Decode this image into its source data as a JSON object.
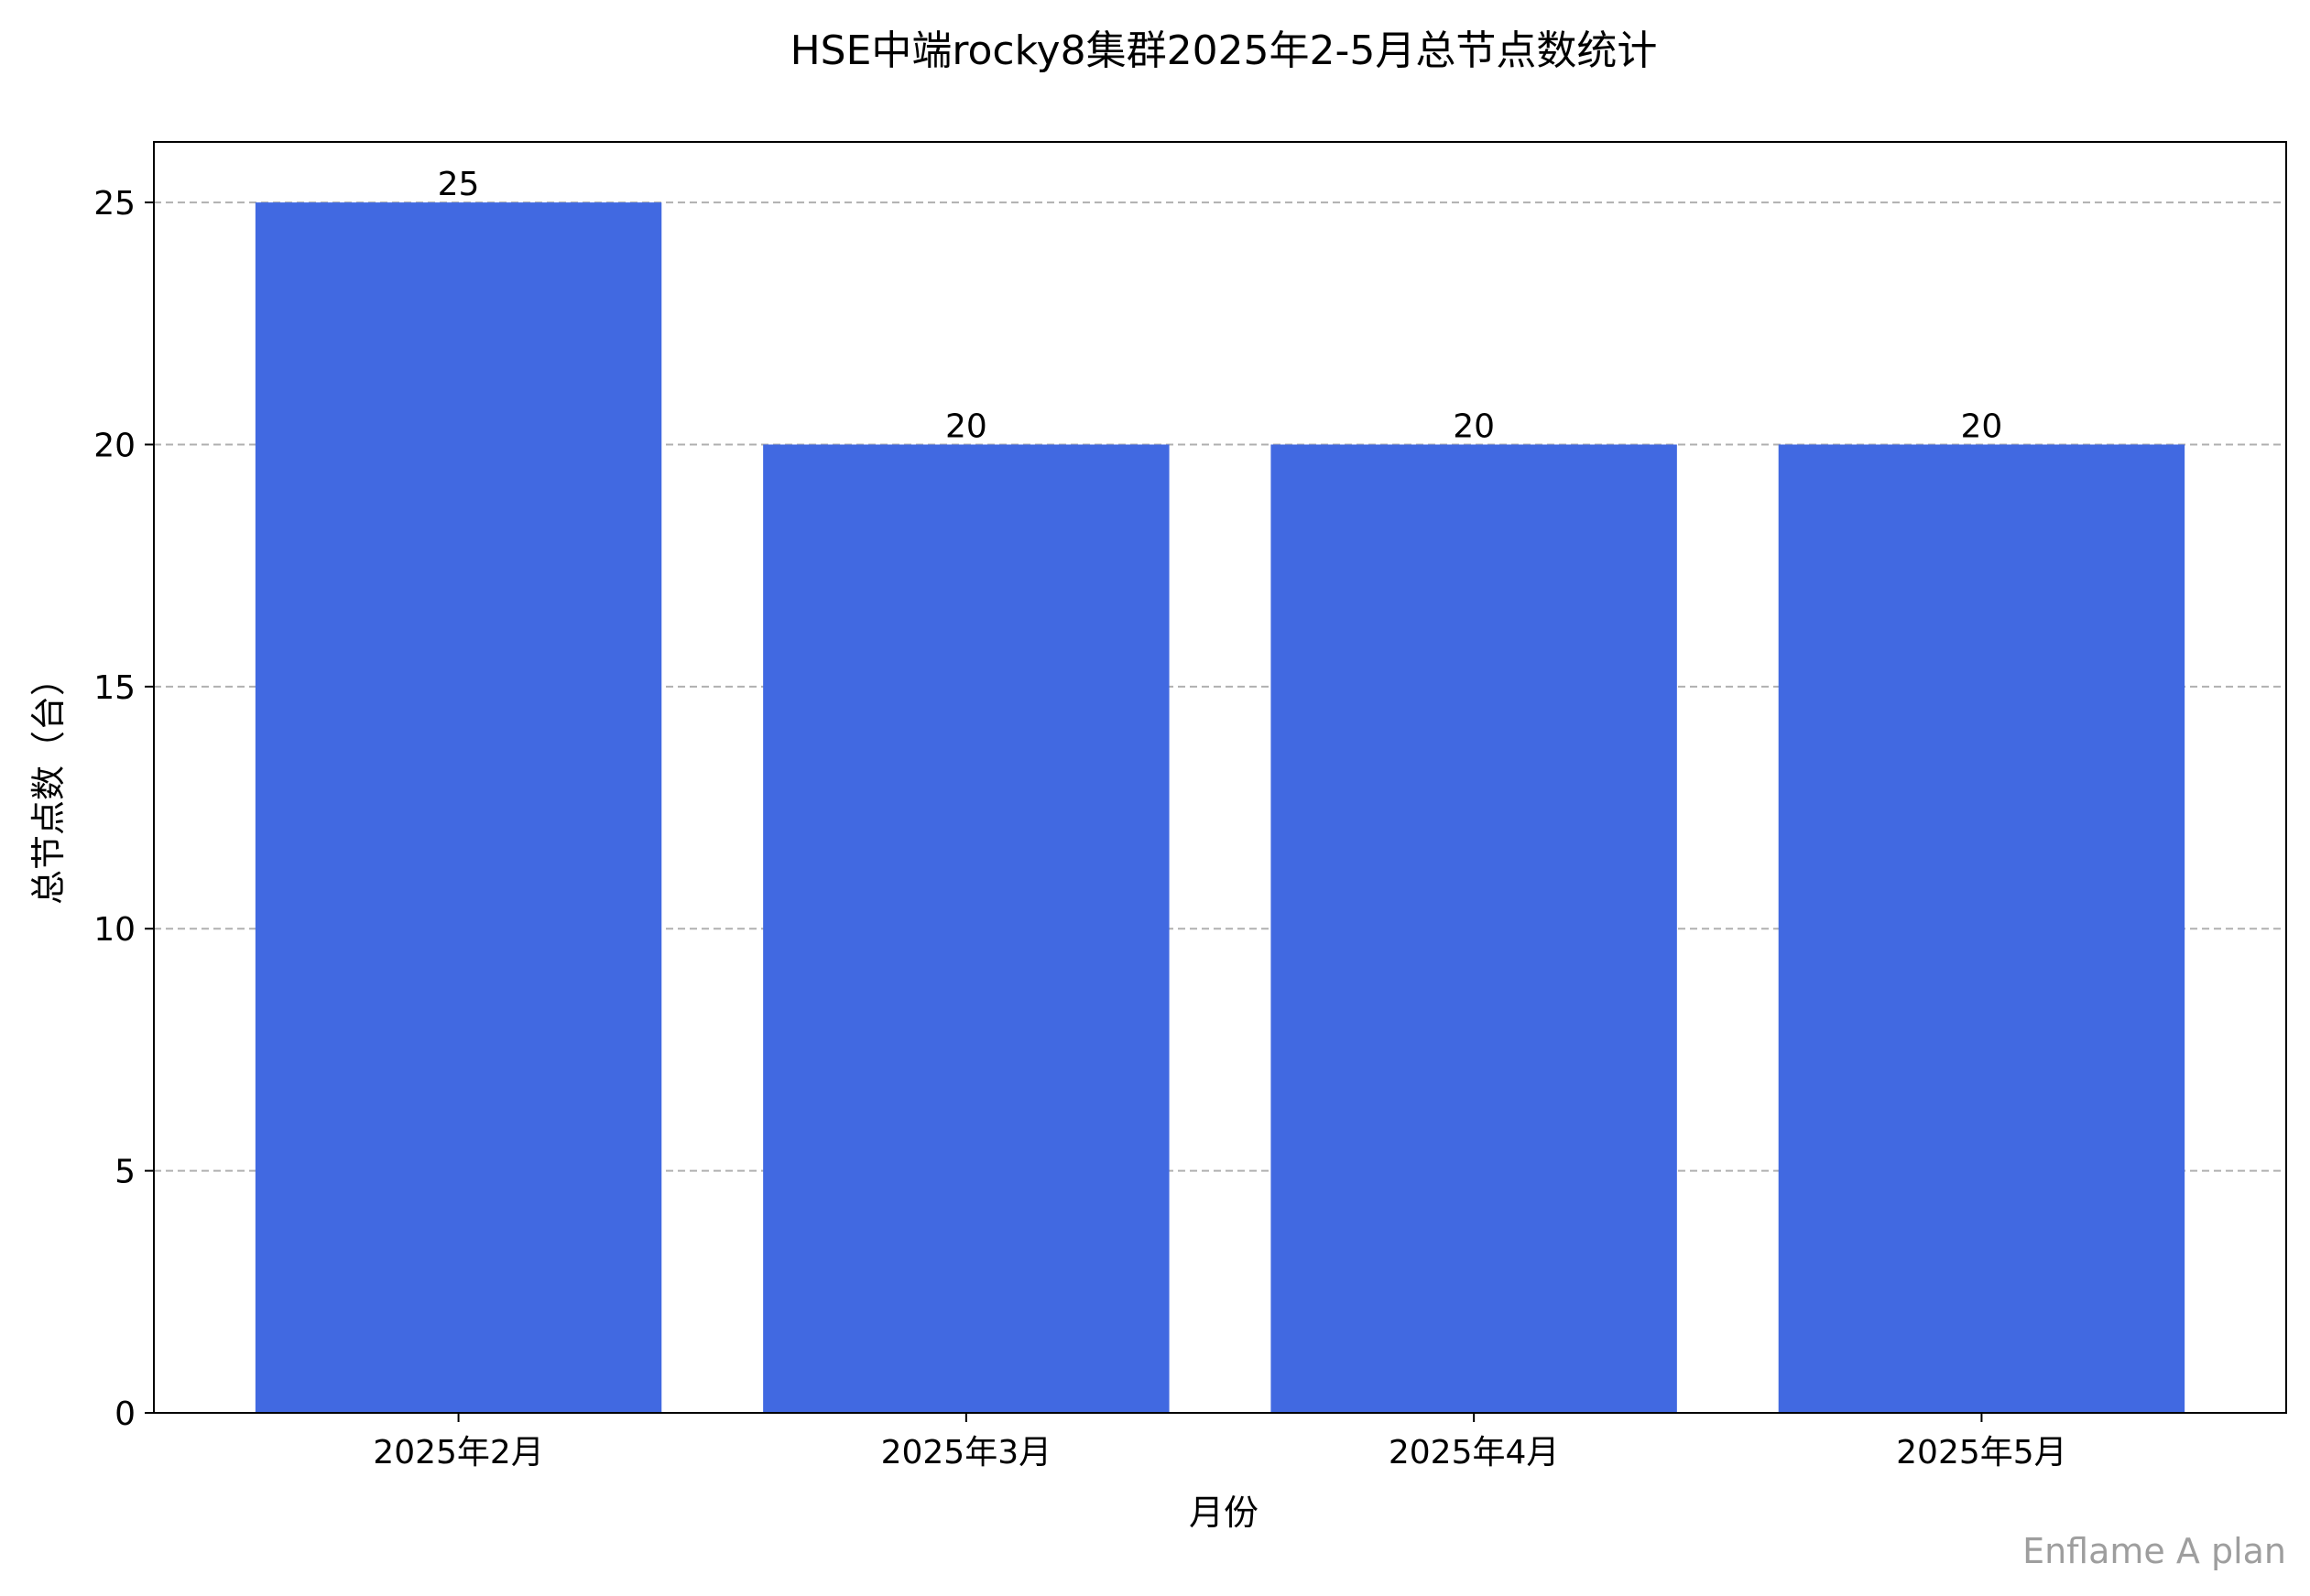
{
  "chart_data": {
    "type": "bar",
    "title": "HSE中端rocky8集群2025年2-5月总节点数统计",
    "xlabel": "月份",
    "ylabel": "总节点数（台）",
    "categories": [
      "2025年2月",
      "2025年3月",
      "2025年4月",
      "2025年5月"
    ],
    "values": [
      25,
      20,
      20,
      20
    ],
    "data_labels": [
      "25",
      "20",
      "20",
      "20"
    ],
    "ylim": [
      0,
      26.25
    ],
    "yticks": [
      0,
      5,
      10,
      15,
      20,
      25
    ],
    "ytick_labels": [
      "0",
      "5",
      "10",
      "15",
      "20",
      "25"
    ],
    "grid": "y-dashed",
    "bar_color": "#4169E1",
    "grid_color": "#b0b0b0",
    "legend": "none"
  },
  "watermark": "Enflame A plan"
}
